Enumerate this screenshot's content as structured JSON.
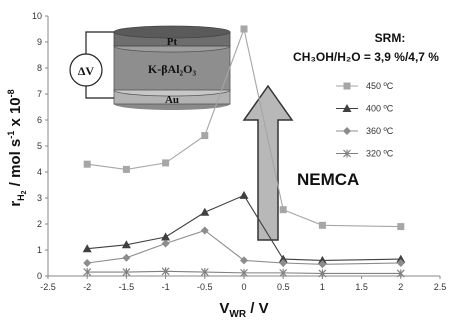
{
  "chart_data": {
    "type": "line",
    "ylabel_main": "r",
    "ylabel_sub": "H",
    "ylabel_subsub": "2",
    "ylabel_units": " / mol s",
    "ylabel_exp1": "-1",
    "ylabel_times": " x 10",
    "ylabel_exp2": "-8",
    "xlabel_main": "V",
    "xlabel_sub": "WR",
    "xlabel_units": " / V",
    "xlim": [
      -2.5,
      2.5
    ],
    "ylim": [
      0,
      10
    ],
    "xticks": [
      "-2.5",
      "-2",
      "-1.5",
      "-1",
      "-0.5",
      "0",
      "0.5",
      "1",
      "1.5",
      "2",
      "2.5"
    ],
    "yticks": [
      "0",
      "1",
      "2",
      "3",
      "4",
      "5",
      "6",
      "7",
      "8",
      "9",
      "10"
    ],
    "grid": false,
    "legend_position": "right",
    "series": [
      {
        "name": "450 ºC",
        "marker": "square",
        "color": "#a6a6a6",
        "x": [
          -2,
          -1.5,
          -1,
          -0.5,
          0,
          0.5,
          1,
          2
        ],
        "y": [
          4.3,
          4.1,
          4.35,
          5.4,
          9.5,
          2.55,
          1.95,
          1.9
        ]
      },
      {
        "name": "400 ºC",
        "marker": "triangle",
        "color": "#404040",
        "x": [
          -2,
          -1.5,
          -1,
          -0.5,
          0,
          0.5,
          1,
          2
        ],
        "y": [
          1.05,
          1.2,
          1.5,
          2.45,
          3.1,
          0.65,
          0.6,
          0.65
        ]
      },
      {
        "name": "360 ºC",
        "marker": "diamond",
        "color": "#8c8c8c",
        "x": [
          -2,
          -1.5,
          -1,
          -0.5,
          0,
          0.5,
          1,
          2
        ],
        "y": [
          0.5,
          0.7,
          1.25,
          1.75,
          0.6,
          0.5,
          0.45,
          0.5
        ]
      },
      {
        "name": "320 ºC",
        "marker": "star",
        "color": "#808080",
        "x": [
          -2,
          -1.5,
          -1,
          -0.5,
          0,
          0.5,
          1,
          2
        ],
        "y": [
          0.15,
          0.15,
          0.18,
          0.15,
          0.12,
          0.12,
          0.1,
          0.1
        ]
      }
    ],
    "annotations": {
      "srm_label": "SRM:",
      "composition": "CH₃OH/H₂O = 3,9 %/4,7 %",
      "effect": "NEMCA",
      "cell_top": "Pt",
      "cell_middle": "K-βAl₂O₃",
      "cell_bottom": "Au",
      "source": "ΔV"
    }
  }
}
